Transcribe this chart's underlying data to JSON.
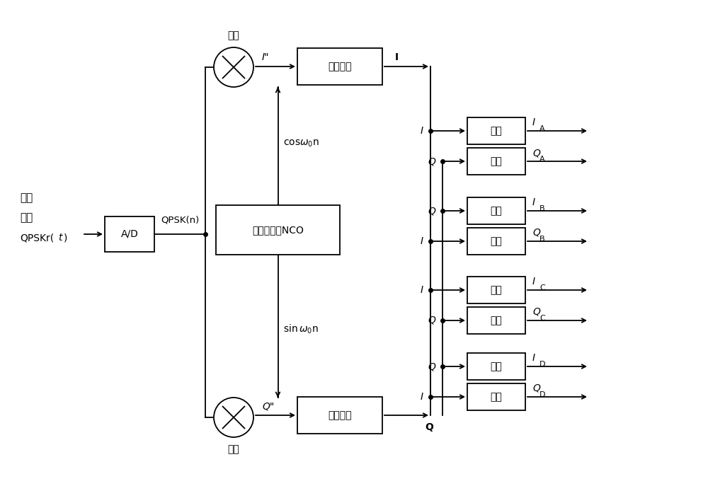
{
  "bg_color": "#ffffff",
  "line_color": "#000000",
  "fig_width": 10.0,
  "fig_height": 6.87,
  "ad_label": "A/D",
  "qpsk_label": "QPSK(n)",
  "nco_label": "数控振荡器NCO",
  "lpf_label": "低通滤波",
  "dot_mult": "点乘",
  "freq_line1": "频带",
  "freq_line2": "信号",
  "right_boxes": [
    {
      "label": "直通",
      "in": "I",
      "out_letter": "I",
      "out_sub": "A"
    },
    {
      "label": "直通",
      "in": "Q",
      "out_letter": "Q",
      "out_sub": "A"
    },
    {
      "label": "求反",
      "in": "Q",
      "out_letter": "I",
      "out_sub": "B"
    },
    {
      "label": "直通",
      "in": "I",
      "out_letter": "Q",
      "out_sub": "B"
    },
    {
      "label": "求反",
      "in": "I",
      "out_letter": "I",
      "out_sub": "C"
    },
    {
      "label": "求反",
      "in": "Q",
      "out_letter": "Q",
      "out_sub": "C"
    },
    {
      "label": "直通",
      "in": "Q",
      "out_letter": "I",
      "out_sub": "D"
    },
    {
      "label": "求反",
      "in": "I",
      "out_letter": "Q",
      "out_sub": "D"
    }
  ]
}
